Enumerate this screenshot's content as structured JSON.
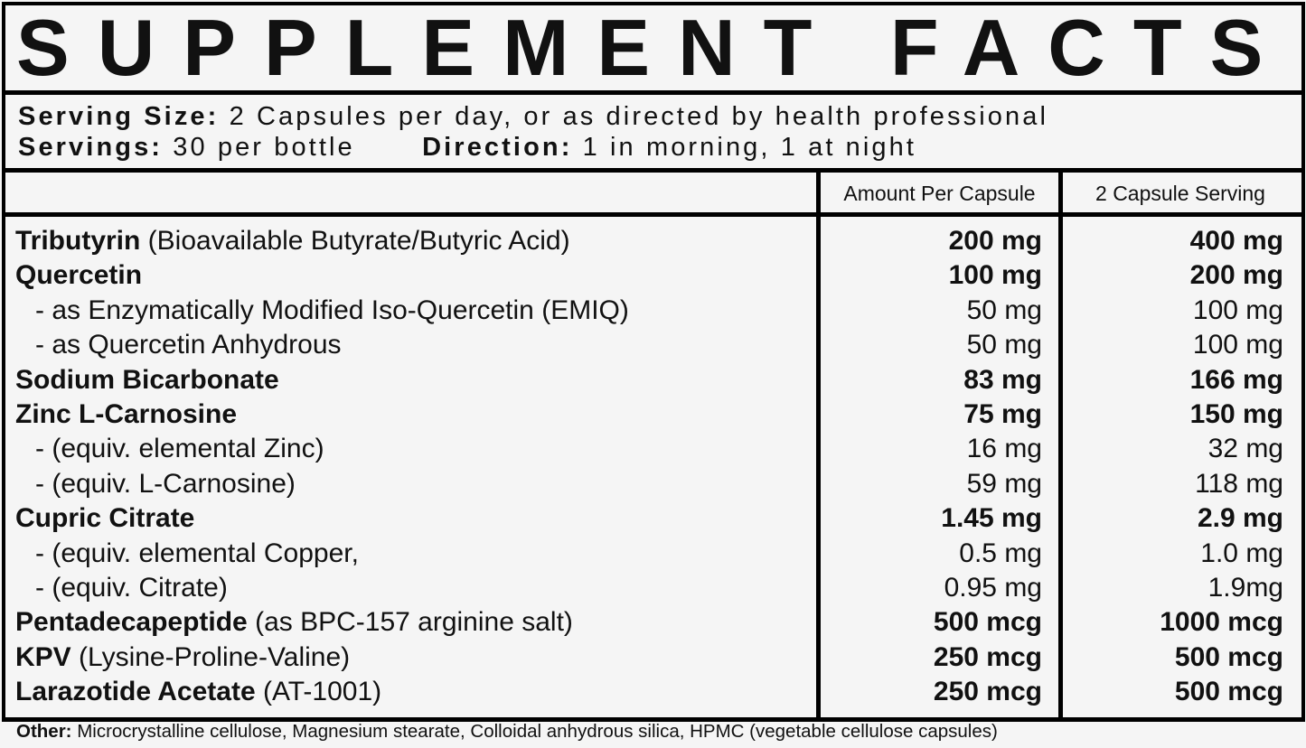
{
  "title": "SUPPLEMENT FACTS",
  "serving": {
    "size_label": "Serving Size:",
    "size_value": "2 Capsules per day, or as directed by health professional",
    "servings_label": "Servings:",
    "servings_value": "30 per bottle",
    "direction_label": "Direction:",
    "direction_value": "1 in morning, 1 at night"
  },
  "columns": {
    "per_capsule": "Amount Per Capsule",
    "per_serving": "2 Capsule Serving"
  },
  "rows": [
    {
      "name": "Tributyrin",
      "note": " (Bioavailable Butyrate/Butyric Acid)",
      "sub": false,
      "bold": true,
      "per_capsule": "200 mg",
      "per_serving": "400 mg"
    },
    {
      "name": "Quercetin",
      "note": "",
      "sub": false,
      "bold": true,
      "per_capsule": "100 mg",
      "per_serving": "200 mg"
    },
    {
      "name": "",
      "note": "- as Enzymatically Modified Iso-Quercetin (EMIQ)",
      "sub": true,
      "bold": false,
      "per_capsule": "50 mg",
      "per_serving": "100 mg"
    },
    {
      "name": "",
      "note": "- as Quercetin Anhydrous",
      "sub": true,
      "bold": false,
      "per_capsule": "50 mg",
      "per_serving": "100 mg"
    },
    {
      "name": "Sodium Bicarbonate",
      "note": "",
      "sub": false,
      "bold": true,
      "per_capsule": "83 mg",
      "per_serving": "166 mg"
    },
    {
      "name": "Zinc L-Carnosine",
      "note": "",
      "sub": false,
      "bold": true,
      "per_capsule": "75 mg",
      "per_serving": "150 mg"
    },
    {
      "name": "",
      "note": "- (equiv. elemental Zinc)",
      "sub": true,
      "bold": false,
      "per_capsule": "16 mg",
      "per_serving": "32 mg"
    },
    {
      "name": "",
      "note": "- (equiv. L-Carnosine)",
      "sub": true,
      "bold": false,
      "per_capsule": "59 mg",
      "per_serving": "118 mg"
    },
    {
      "name": "Cupric Citrate",
      "note": "",
      "sub": false,
      "bold": true,
      "per_capsule": "1.45 mg",
      "per_serving": "2.9 mg"
    },
    {
      "name": "",
      "note": "- (equiv. elemental Copper,",
      "sub": true,
      "bold": false,
      "per_capsule": "0.5 mg",
      "per_serving": "1.0 mg"
    },
    {
      "name": "",
      "note": "- (equiv. Citrate)",
      "sub": true,
      "bold": false,
      "per_capsule": "0.95 mg",
      "per_serving": "1.9mg"
    },
    {
      "name": "Pentadecapeptide",
      "note": " (as BPC-157 arginine salt)",
      "sub": false,
      "bold": true,
      "per_capsule": "500 mcg",
      "per_serving": "1000 mcg"
    },
    {
      "name": "KPV",
      "note": " (Lysine-Proline-Valine)",
      "sub": false,
      "bold": true,
      "per_capsule": "250 mcg",
      "per_serving": "500 mcg"
    },
    {
      "name": "Larazotide Acetate",
      "note": " (AT-1001)",
      "sub": false,
      "bold": true,
      "per_capsule": "250 mcg",
      "per_serving": "500 mcg"
    }
  ],
  "footer": {
    "label": "Other:",
    "text": " Microcrystalline cellulose, Magnesium stearate, Colloidal anhydrous silica, HPMC (vegetable cellulose capsules)"
  }
}
